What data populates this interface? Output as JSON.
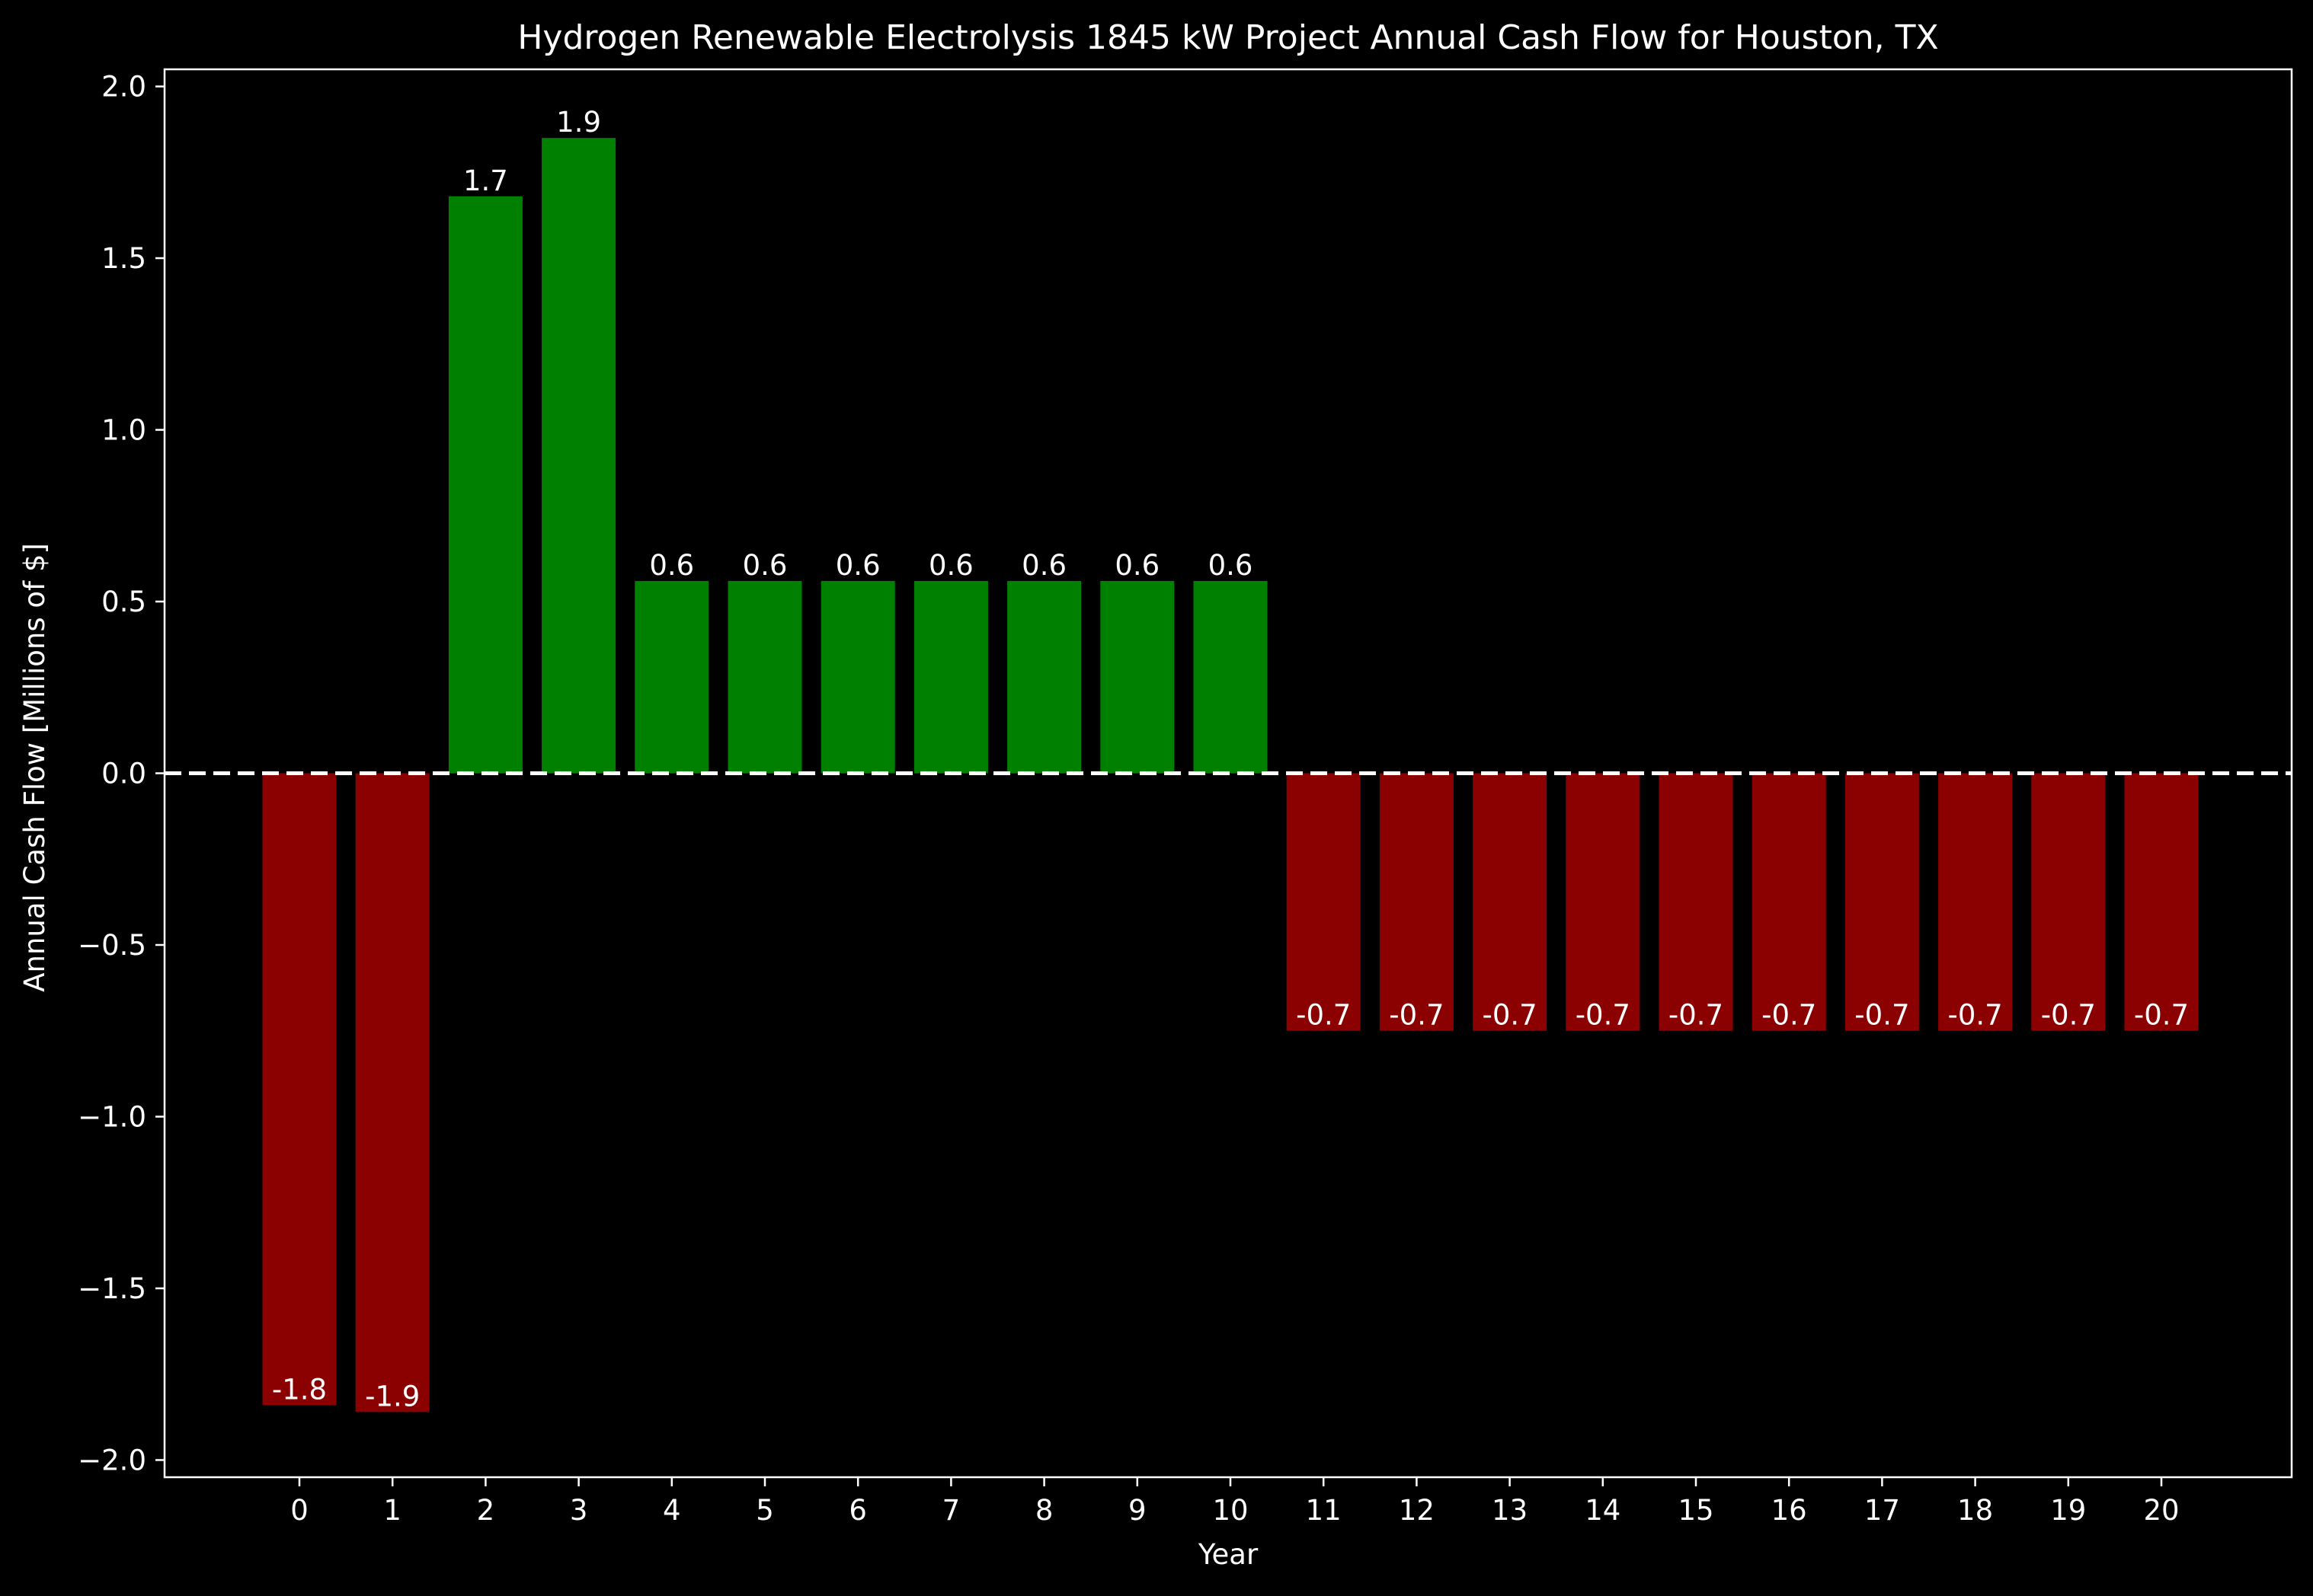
{
  "chart_data": {
    "type": "bar",
    "title": "Hydrogen Renewable Electrolysis 1845 kW Project Annual Cash Flow for Houston, TX",
    "xlabel": "Year",
    "ylabel": "Annual Cash Flow [Millions of $]",
    "categories": [
      "0",
      "1",
      "2",
      "3",
      "4",
      "5",
      "6",
      "7",
      "8",
      "9",
      "10",
      "11",
      "12",
      "13",
      "14",
      "15",
      "16",
      "17",
      "18",
      "19",
      "20"
    ],
    "values": [
      -1.84,
      -1.86,
      1.68,
      1.85,
      0.56,
      0.56,
      0.56,
      0.56,
      0.56,
      0.56,
      0.56,
      -0.75,
      -0.75,
      -0.75,
      -0.75,
      -0.75,
      -0.75,
      -0.75,
      -0.75,
      -0.75,
      -0.75
    ],
    "data_labels": [
      "-1.8",
      "-1.9",
      "1.7",
      "1.9",
      "0.6",
      "0.6",
      "0.6",
      "0.6",
      "0.6",
      "0.6",
      "0.6",
      "-0.7",
      "-0.7",
      "-0.7",
      "-0.7",
      "-0.7",
      "-0.7",
      "-0.7",
      "-0.7",
      "-0.7",
      "-0.7"
    ],
    "ylim": [
      -2.05,
      2.05
    ],
    "yticks": [
      2.0,
      1.5,
      1.0,
      0.5,
      0.0,
      -0.5,
      -1.0,
      -1.5,
      -2.0
    ],
    "ytick_labels": [
      "2.0",
      "1.5",
      "1.0",
      "0.5",
      "0.0",
      "−0.5",
      "−1.0",
      "−1.5",
      "−2.0"
    ],
    "grid": false,
    "zero_line": "dashed",
    "colors": {
      "positive": "#008000",
      "negative": "#8b0000",
      "background": "#000000",
      "foreground": "#ffffff"
    }
  }
}
